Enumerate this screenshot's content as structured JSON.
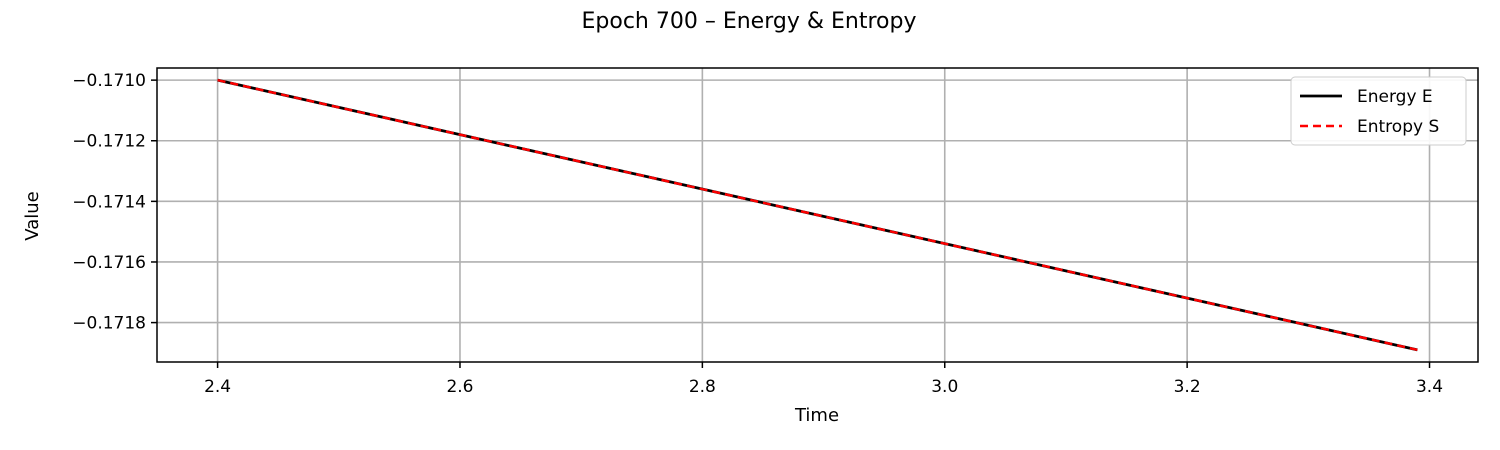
{
  "chart_data": {
    "type": "line",
    "title": "Epoch 700 – Energy & Entropy",
    "xlabel": "Time",
    "ylabel": "Value",
    "xlim": [
      2.35,
      3.44
    ],
    "ylim": [
      -0.17193,
      -0.17096
    ],
    "xticks": [
      2.4,
      2.6,
      2.8,
      3.0,
      3.2,
      3.4
    ],
    "xtick_labels": [
      "2.4",
      "2.6",
      "2.8",
      "3.0",
      "3.2",
      "3.4"
    ],
    "yticks": [
      -0.171,
      -0.1712,
      -0.1714,
      -0.1716,
      -0.1718
    ],
    "ytick_labels": [
      "−0.1710",
      "−0.1712",
      "−0.1714",
      "−0.1716",
      "−0.1718"
    ],
    "grid": true,
    "legend_position": "top-right",
    "series": [
      {
        "name": "Energy E",
        "color": "#000000",
        "style": "solid",
        "x": [
          2.4,
          3.39
        ],
        "values": [
          -0.171,
          -0.17189
        ]
      },
      {
        "name": "Entropy S",
        "color": "#ff0000",
        "style": "dashed",
        "x": [
          2.4,
          3.39
        ],
        "values": [
          -0.171,
          -0.17189
        ]
      }
    ]
  }
}
